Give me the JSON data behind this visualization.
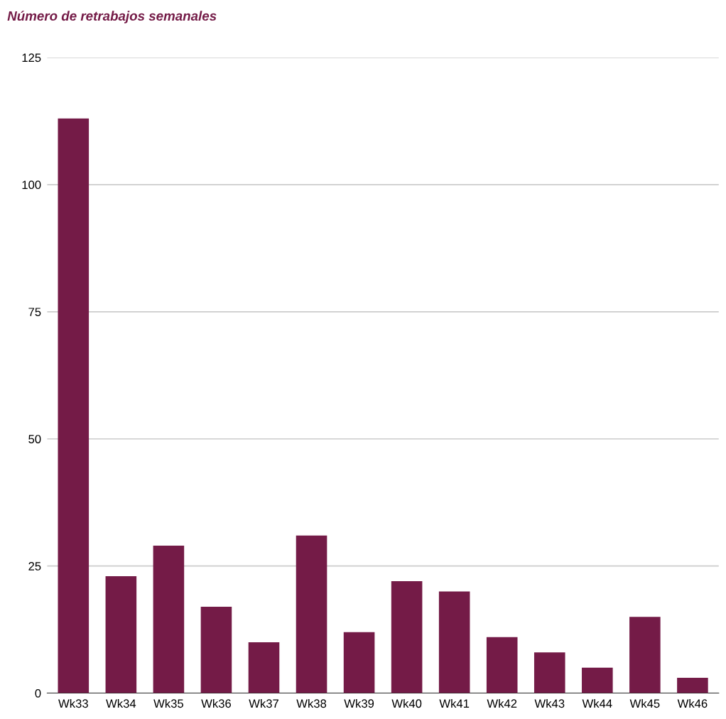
{
  "chart_data": {
    "type": "bar",
    "title": "Número de retrabajos semanales",
    "categories": [
      "Wk33",
      "Wk34",
      "Wk35",
      "Wk36",
      "Wk37",
      "Wk38",
      "Wk39",
      "Wk40",
      "Wk41",
      "Wk42",
      "Wk43",
      "Wk44",
      "Wk45",
      "Wk46"
    ],
    "values": [
      113,
      23,
      29,
      17,
      10,
      31,
      12,
      22,
      20,
      11,
      8,
      5,
      15,
      3
    ],
    "color": "#741b47",
    "ylim": [
      0,
      125
    ],
    "yticks": [
      0,
      25,
      50,
      75,
      100,
      125
    ],
    "grid": "y"
  }
}
